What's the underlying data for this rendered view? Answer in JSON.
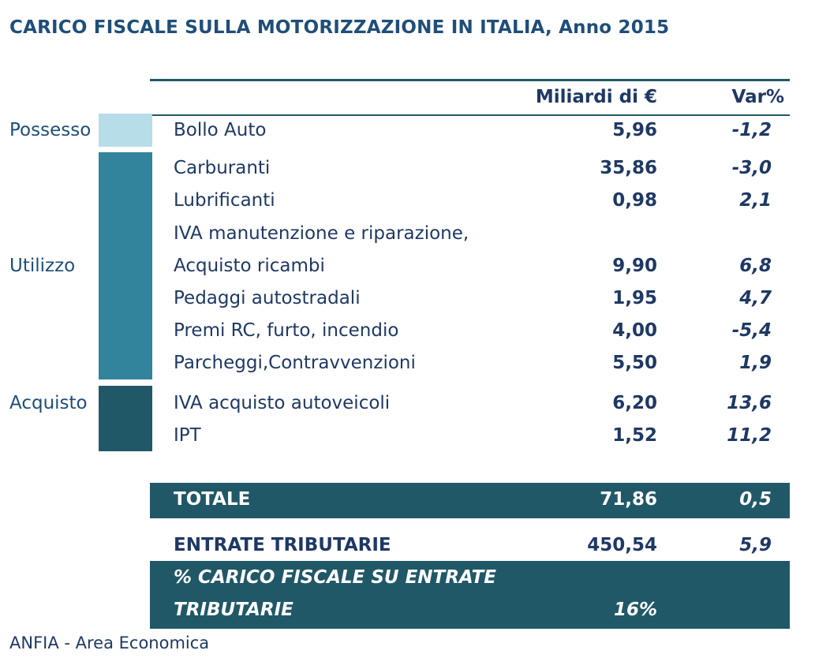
{
  "title": "CARICO FISCALE SULLA MOTORIZZAZIONE IN ITALIA, Anno 2015",
  "header": {
    "col_value": "Miliardi di €",
    "col_var": "Var%"
  },
  "categories": [
    {
      "name": "Possesso",
      "color": "#b7dde8"
    },
    {
      "name": "Utilizzo",
      "color": "#31849b"
    },
    {
      "name": "Acquisto",
      "color": "#215868"
    }
  ],
  "rows": [
    {
      "label": "Bollo Auto",
      "value": "5,96",
      "var": "-1,2"
    },
    {
      "label": "Carburanti",
      "value": "35,86",
      "var": "-3,0"
    },
    {
      "label": "Lubrificanti",
      "value": "0,98",
      "var": "2,1"
    },
    {
      "label": "IVA manutenzione e riparazione,",
      "label2": "Acquisto ricambi",
      "value": "9,90",
      "var": "6,8"
    },
    {
      "label": "Pedaggi autostradali",
      "value": "1,95",
      "var": "4,7"
    },
    {
      "label": "Premi RC, furto, incendio",
      "value": "4,00",
      "var": "-5,4"
    },
    {
      "label": "Parcheggi,Contravvenzioni",
      "value": "5,50",
      "var": "1,9"
    },
    {
      "label": "IVA acquisto autoveicoli",
      "value": "6,20",
      "var": "13,6"
    },
    {
      "label": "IPT",
      "value": "1,52",
      "var": "11,2"
    }
  ],
  "totale": {
    "label": "TOTALE",
    "value": "71,86",
    "var": "0,5"
  },
  "entrate": {
    "label": "ENTRATE TRIBUTARIE",
    "value": "450,54",
    "var": "5,9"
  },
  "carico": {
    "label_line1": "% CARICO FISCALE SU ENTRATE",
    "label_line2": "TRIBUTARIE",
    "value": "16%"
  },
  "footer": "ANFIA - Area Economica",
  "colors": {
    "dark": "#215868",
    "text": "#1f3864",
    "title": "#1f4e79"
  }
}
